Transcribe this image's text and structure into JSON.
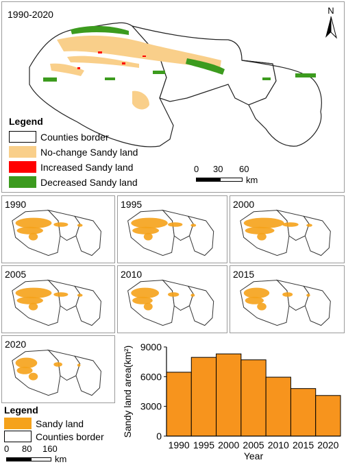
{
  "main_map": {
    "period": "1990-2020",
    "north_label": "N",
    "legend": {
      "title": "Legend",
      "items": [
        {
          "label": "Counties border",
          "color": "#ffffff"
        },
        {
          "label": "No-change Sandy land",
          "color": "#f9cf8a"
        },
        {
          "label": "Increased Sandy land",
          "color": "#ff0000"
        },
        {
          "label": "Decreased Sandy land",
          "color": "#3c9b1e"
        }
      ]
    },
    "scale": {
      "ticks": [
        "0",
        "30",
        "60"
      ],
      "unit": "km"
    }
  },
  "small_maps": {
    "years": [
      "1990",
      "1995",
      "2000",
      "2005",
      "2010",
      "2015",
      "2020"
    ],
    "legend": {
      "title": "Legend",
      "items": [
        {
          "label": "Sandy land",
          "color": "#f5a21a"
        },
        {
          "label": "Counties border",
          "color": "#ffffff"
        }
      ]
    },
    "scale": {
      "ticks": [
        "0",
        "80",
        "160"
      ],
      "unit": "km"
    }
  },
  "chart_data": {
    "type": "bar",
    "categories": [
      "1990",
      "1995",
      "2000",
      "2005",
      "2010",
      "2015",
      "2020"
    ],
    "values": [
      6450,
      7950,
      8300,
      7700,
      5950,
      4800,
      4100
    ],
    "xlabel": "Year",
    "ylabel": "Sandy land area(km²)",
    "ylim": [
      0,
      9000
    ],
    "yticks": [
      "0",
      "3000",
      "6000",
      "9000"
    ],
    "bar_color": "#f7941d",
    "grid": false
  }
}
